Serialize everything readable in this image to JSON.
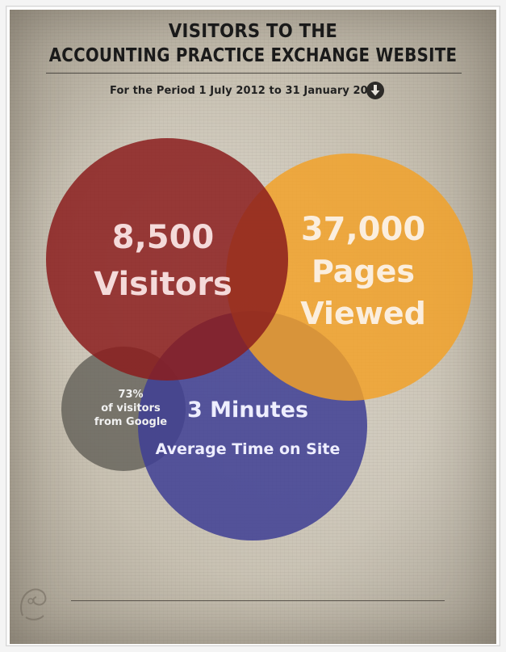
{
  "header": {
    "title_line1": "VISITORS TO THE",
    "title_line2": "ACCOUNTING PRACTICE EXCHANGE WEBSITE",
    "period": "For the Period 1 July 2012 to 31 January 2013",
    "period_icon": "arrow-down-circle-icon"
  },
  "bubbles": {
    "visitors": {
      "value": "8,500",
      "label": "Visitors",
      "color": "#8b1d1d"
    },
    "pages": {
      "value": "37,000",
      "label_line1": "Pages",
      "label_line2": "Viewed",
      "color": "#f2a127"
    },
    "google": {
      "value": "73%",
      "label_line1": "of visitors",
      "label_line2": "from Google",
      "color": "#5f5c55"
    },
    "time": {
      "value": "3 Minutes",
      "label": "Average Time on Site",
      "color": "#3f3f94"
    }
  },
  "colors": {
    "background": "#cfc8b9",
    "text_dark": "#1a1a1a"
  }
}
